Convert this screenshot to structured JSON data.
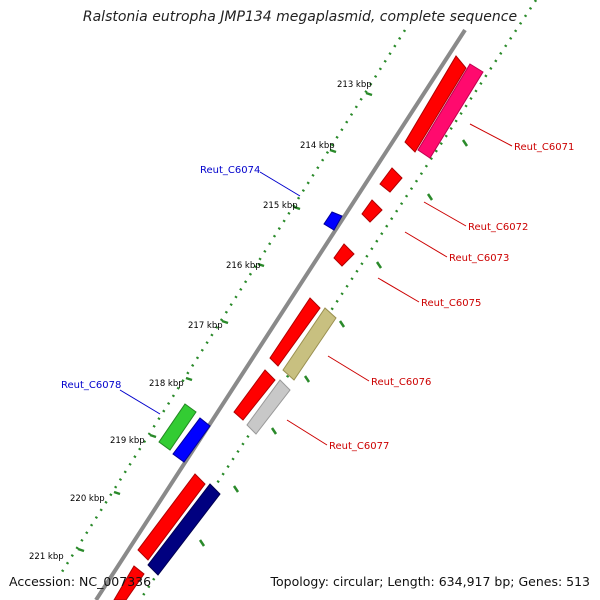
{
  "title": "Ralstonia eutropha JMP134 megaplasmid, complete sequence",
  "footer": {
    "accession": "Accession: NC_007336",
    "summary": "Topology: circular; Length: 634,917 bp; Genes: 513"
  },
  "colors": {
    "backbone": "#8a8a8a",
    "tick": "#2a8a2a",
    "label_forward": "#0000cc",
    "label_reverse": "#cc0000"
  },
  "ticks": [
    "213 kbp",
    "214 kbp",
    "215 kbp",
    "216 kbp",
    "217 kbp",
    "218 kbp",
    "219 kbp",
    "220 kbp",
    "221 kbp"
  ],
  "genes": [
    {
      "name": "Reut_C6071",
      "strand": "reverse",
      "color": "#ff0a6e"
    },
    {
      "name": "Reut_C6072",
      "strand": "reverse",
      "color": "#ff0000"
    },
    {
      "name": "Reut_C6073",
      "strand": "reverse",
      "color": "#ff0000"
    },
    {
      "name": "Reut_C6074",
      "strand": "forward",
      "color": "#0000ff"
    },
    {
      "name": "Reut_C6075",
      "strand": "reverse",
      "color": "#ff0000"
    },
    {
      "name": "Reut_C6076",
      "strand": "reverse",
      "color": "#c8c080"
    },
    {
      "name": "Reut_C6077",
      "strand": "reverse",
      "color": "#c8c8c8"
    },
    {
      "name": "Reut_C6078",
      "strand": "forward",
      "color": "#33cc33"
    }
  ]
}
